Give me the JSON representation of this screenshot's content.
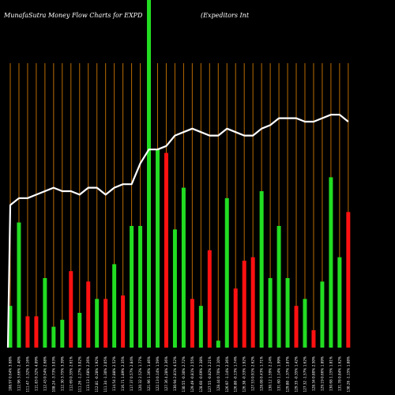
{
  "header": {
    "left": "MunafaSutra  Money Flow  Charts for EXPD",
    "right": "(Expeditors Int"
  },
  "chart_data": {
    "type": "bar",
    "title": "MunafaSutra  Money Flow  Charts for EXPD",
    "subtitle": "(Expeditors Int",
    "ylim": [
      0,
      100
    ],
    "colors": {
      "up": "#22dd22",
      "down": "#ff1111",
      "line": "#ffffff",
      "grid": "#b86a00",
      "background": "#000000"
    },
    "categories": [
      "108.97 0.64% 3.68%",
      "112.96 3.66% 2.40%",
      "111.47 -1.32% 3.16%",
      "111.83 0.32% 4.09%",
      "112.43 0.54% 2.68%",
      "108.24 -3.73% 3.03%",
      "112.30 3.75% 3.39%",
      "112.69 0.35% 2.61%",
      "111.26 -1.27% 3.02%",
      "113.13 1.68% 2.26%",
      "112.81 -0.28% 1.92%",
      "111.34 -1.30% 2.05%",
      "114.54 2.88% 2.52%",
      "116.71 1.89% 2.35%",
      "117.37 0.57% 2.84%",
      "120.32 2.52% 1.77%",
      "121.96 1.36% 1.46%",
      "122.13 0.14% 1.59%",
      "127.36 4.28% 2.36%",
      "130.94 2.81% 4.52%",
      "130.55 -0.30% 2.72%",
      "129.49 -0.81% 2.55%",
      "128.60 -0.69% 2.38%",
      "127.55 -0.82% 2.21%",
      "128.44 0.70% 2.10%",
      "126.97 -1.14% 2.36%",
      "126.80 -0.13% 1.74%",
      "126.38 -0.33% 1.92%",
      "127.53 0.91% 2.62%",
      "128.08 0.43% 1.71%",
      "130.12 1.59% 2.24%",
      "131.60 1.14% 1.99%",
      "129.80 -1.37% 1.87%",
      "129.35 -0.35% 1.42%",
      "127.32 -1.57% 1.62%",
      "128.34 0.80% 2.50%",
      "129.19 0.66% 1.89%",
      "130.68 1.15% 1.81%",
      "131.78 0.84% 1.62%",
      "130.26 -1.15% 1.88%"
    ],
    "series": [
      {
        "values": [
          12,
          36,
          9,
          9,
          20,
          6,
          8,
          22,
          10,
          19,
          14,
          14,
          24,
          15,
          35,
          35,
          100,
          57,
          56,
          34,
          46,
          14,
          12,
          28,
          2,
          43,
          17,
          25,
          26,
          45,
          20,
          35,
          20,
          12,
          14,
          5,
          19,
          49,
          26,
          39
        ],
        "directions": [
          "up",
          "up",
          "down",
          "down",
          "up",
          "up",
          "up",
          "down",
          "up",
          "down",
          "up",
          "down",
          "up",
          "down",
          "up",
          "up",
          "up",
          "up",
          "down",
          "up",
          "up",
          "down",
          "up",
          "down",
          "up",
          "up",
          "down",
          "down",
          "down",
          "up",
          "up",
          "up",
          "up",
          "down",
          "up",
          "down",
          "up",
          "up",
          "up",
          "down"
        ]
      },
      {
        "values": [
          41,
          43,
          43,
          44,
          45,
          46,
          45,
          45,
          44,
          46,
          46,
          44,
          46,
          47,
          47,
          53,
          57,
          57,
          58,
          61,
          62,
          63,
          62,
          61,
          61,
          63,
          62,
          61,
          61,
          63,
          64,
          66,
          66,
          66,
          65,
          65,
          66,
          67,
          67,
          65
        ]
      }
    ]
  }
}
